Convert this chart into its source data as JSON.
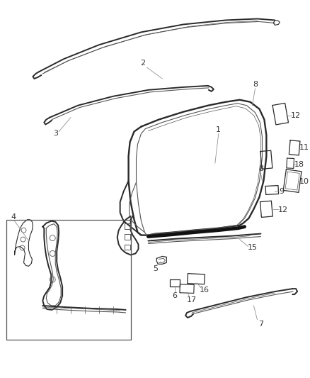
{
  "bg_color": "#ffffff",
  "line_color": "#2a2a2a",
  "thin_color": "#555555",
  "label_color": "#333333",
  "fig_width": 4.38,
  "fig_height": 5.33,
  "dpi": 100
}
